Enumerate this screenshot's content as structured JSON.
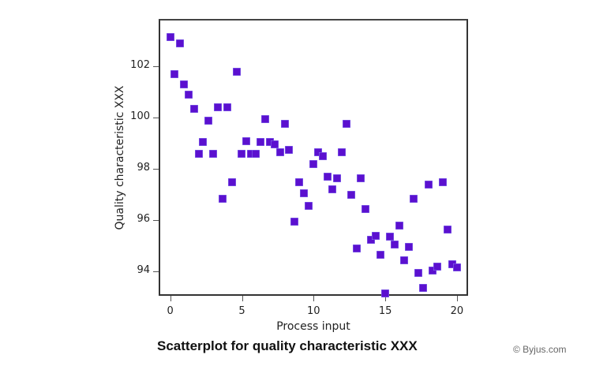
{
  "chart_data": {
    "type": "scatter",
    "title": "Scatterplot for quality characteristic XXX",
    "xlabel": "Process input",
    "ylabel": "Quality characteristic XXX",
    "xlim": [
      -0.8,
      20.8
    ],
    "ylim": [
      92.9,
      103.35
    ],
    "xticks": [
      0,
      5,
      10,
      15,
      20
    ],
    "yticks": [
      94,
      96,
      98,
      100,
      102
    ],
    "grid": false,
    "legend": null,
    "marker": {
      "shape": "square",
      "color": "#5B10CF"
    },
    "points": [
      {
        "x": 0.0,
        "y": 103.15
      },
      {
        "x": 0.3,
        "y": 101.7
      },
      {
        "x": 0.65,
        "y": 102.9
      },
      {
        "x": 0.98,
        "y": 101.3
      },
      {
        "x": 1.3,
        "y": 100.9
      },
      {
        "x": 1.65,
        "y": 100.35
      },
      {
        "x": 1.98,
        "y": 98.6
      },
      {
        "x": 2.3,
        "y": 99.05
      },
      {
        "x": 2.65,
        "y": 99.9
      },
      {
        "x": 2.98,
        "y": 98.6
      },
      {
        "x": 3.3,
        "y": 100.4
      },
      {
        "x": 3.63,
        "y": 96.85
      },
      {
        "x": 3.98,
        "y": 100.4
      },
      {
        "x": 4.3,
        "y": 97.5
      },
      {
        "x": 4.65,
        "y": 101.8
      },
      {
        "x": 4.98,
        "y": 98.6
      },
      {
        "x": 5.3,
        "y": 99.1
      },
      {
        "x": 5.65,
        "y": 98.6
      },
      {
        "x": 5.98,
        "y": 98.6
      },
      {
        "x": 6.3,
        "y": 99.05
      },
      {
        "x": 6.65,
        "y": 99.95
      },
      {
        "x": 6.95,
        "y": 99.05
      },
      {
        "x": 7.3,
        "y": 98.95
      },
      {
        "x": 7.65,
        "y": 98.65
      },
      {
        "x": 7.98,
        "y": 99.75
      },
      {
        "x": 8.3,
        "y": 98.75
      },
      {
        "x": 8.65,
        "y": 95.95
      },
      {
        "x": 8.98,
        "y": 97.5
      },
      {
        "x": 9.3,
        "y": 97.05
      },
      {
        "x": 9.65,
        "y": 96.55
      },
      {
        "x": 9.98,
        "y": 98.2
      },
      {
        "x": 10.3,
        "y": 98.65
      },
      {
        "x": 10.65,
        "y": 98.5
      },
      {
        "x": 11.0,
        "y": 97.7
      },
      {
        "x": 11.3,
        "y": 97.2
      },
      {
        "x": 11.65,
        "y": 97.65
      },
      {
        "x": 11.98,
        "y": 98.65
      },
      {
        "x": 12.3,
        "y": 99.75
      },
      {
        "x": 12.65,
        "y": 97.0
      },
      {
        "x": 13.0,
        "y": 94.9
      },
      {
        "x": 13.3,
        "y": 97.65
      },
      {
        "x": 13.63,
        "y": 96.45
      },
      {
        "x": 13.98,
        "y": 95.25
      },
      {
        "x": 14.33,
        "y": 95.4
      },
      {
        "x": 14.65,
        "y": 94.65
      },
      {
        "x": 15.0,
        "y": 93.15
      },
      {
        "x": 15.33,
        "y": 95.35
      },
      {
        "x": 15.65,
        "y": 95.05
      },
      {
        "x": 15.98,
        "y": 95.8
      },
      {
        "x": 16.33,
        "y": 94.45
      },
      {
        "x": 16.65,
        "y": 94.95
      },
      {
        "x": 17.0,
        "y": 96.85
      },
      {
        "x": 17.3,
        "y": 93.95
      },
      {
        "x": 17.65,
        "y": 93.35
      },
      {
        "x": 18.0,
        "y": 97.4
      },
      {
        "x": 18.3,
        "y": 94.05
      },
      {
        "x": 18.65,
        "y": 94.2
      },
      {
        "x": 19.0,
        "y": 97.5
      },
      {
        "x": 19.33,
        "y": 95.65
      },
      {
        "x": 19.65,
        "y": 94.3
      },
      {
        "x": 20.0,
        "y": 94.15
      }
    ]
  },
  "credit": "© Byjus.com"
}
